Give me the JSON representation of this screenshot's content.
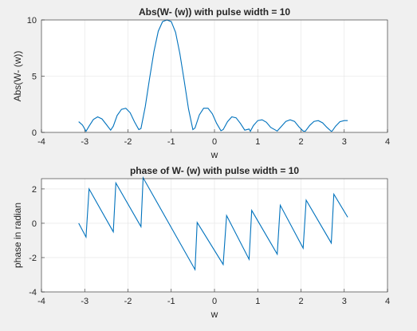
{
  "chart_data": [
    {
      "type": "line",
      "title": "Abs(W- (w)) with pulse width = 10",
      "xlabel": "w",
      "ylabel": "Abs(W- (w))",
      "xlim": [
        -4,
        4
      ],
      "ylim": [
        0,
        10
      ],
      "xticks": [
        "-4",
        "-3",
        "-2",
        "-1",
        "0",
        "1",
        "2",
        "3",
        "4"
      ],
      "yticks": [
        "0",
        "5",
        "10"
      ],
      "grid": true,
      "line_color": "#0072bd",
      "series": [
        {
          "x": [
            -3.14,
            -3.05,
            -2.97,
            -2.9,
            -2.8,
            -2.7,
            -2.6,
            -2.5,
            -2.4,
            -2.34,
            -2.25,
            -2.15,
            -2.05,
            -1.95,
            -1.85,
            -1.75,
            -1.7,
            -1.6,
            -1.5,
            -1.4,
            -1.3,
            -1.2,
            -1.1,
            -1.0,
            -0.9,
            -0.8,
            -0.7,
            -0.6,
            -0.5,
            -0.45,
            -0.35,
            -0.25,
            -0.15,
            -0.05,
            0.05,
            0.15,
            0.2,
            0.3,
            0.4,
            0.5,
            0.6,
            0.7,
            0.8,
            0.83,
            0.9,
            1.0,
            1.1,
            1.2,
            1.3,
            1.45,
            1.55,
            1.65,
            1.75,
            1.85,
            1.95,
            2.05,
            2.1,
            2.2,
            2.3,
            2.4,
            2.5,
            2.6,
            2.7,
            2.72,
            2.8,
            2.9,
            3.0,
            3.08
          ],
          "y": [
            0.95,
            0.65,
            0.1,
            0.55,
            1.15,
            1.38,
            1.2,
            0.7,
            0.2,
            0.55,
            1.5,
            2.05,
            2.15,
            1.75,
            0.95,
            0.25,
            0.35,
            2.3,
            4.8,
            7.2,
            9.0,
            9.85,
            10.0,
            9.85,
            8.9,
            7.0,
            4.6,
            2.1,
            0.25,
            0.4,
            1.55,
            2.15,
            2.15,
            1.65,
            0.8,
            0.15,
            0.25,
            0.95,
            1.38,
            1.3,
            0.8,
            0.2,
            0.3,
            0.1,
            0.6,
            1.05,
            1.12,
            0.9,
            0.45,
            0.12,
            0.55,
            0.98,
            1.12,
            0.98,
            0.5,
            0.12,
            0.1,
            0.62,
            0.98,
            1.05,
            0.85,
            0.45,
            0.1,
            0.12,
            0.55,
            0.95,
            1.05,
            1.05
          ]
        }
      ]
    },
    {
      "type": "line",
      "title": "phase of W- (w) with pulse width = 10",
      "xlabel": "w",
      "ylabel": "phase in radian",
      "xlim": [
        -4,
        4
      ],
      "ylim": [
        -4,
        2.6
      ],
      "xticks": [
        "-4",
        "-3",
        "-2",
        "-1",
        "0",
        "1",
        "2",
        "3",
        "4"
      ],
      "yticks": [
        "-4",
        "-2",
        "0",
        "2"
      ],
      "grid": true,
      "line_color": "#0072bd",
      "series": [
        {
          "x": [
            -3.14,
            -2.97,
            -2.9,
            -2.34,
            -2.28,
            -1.7,
            -1.65,
            -0.45,
            -0.4,
            0.2,
            0.28,
            0.8,
            0.86,
            1.45,
            1.52,
            2.05,
            2.12,
            2.7,
            2.76,
            3.08
          ],
          "y": [
            0.0,
            -0.8,
            2.0,
            -0.5,
            2.35,
            -0.2,
            2.65,
            -2.7,
            0.05,
            -2.4,
            0.45,
            -2.1,
            0.75,
            -1.8,
            1.05,
            -1.45,
            1.35,
            -1.15,
            1.7,
            0.35
          ]
        }
      ]
    }
  ]
}
